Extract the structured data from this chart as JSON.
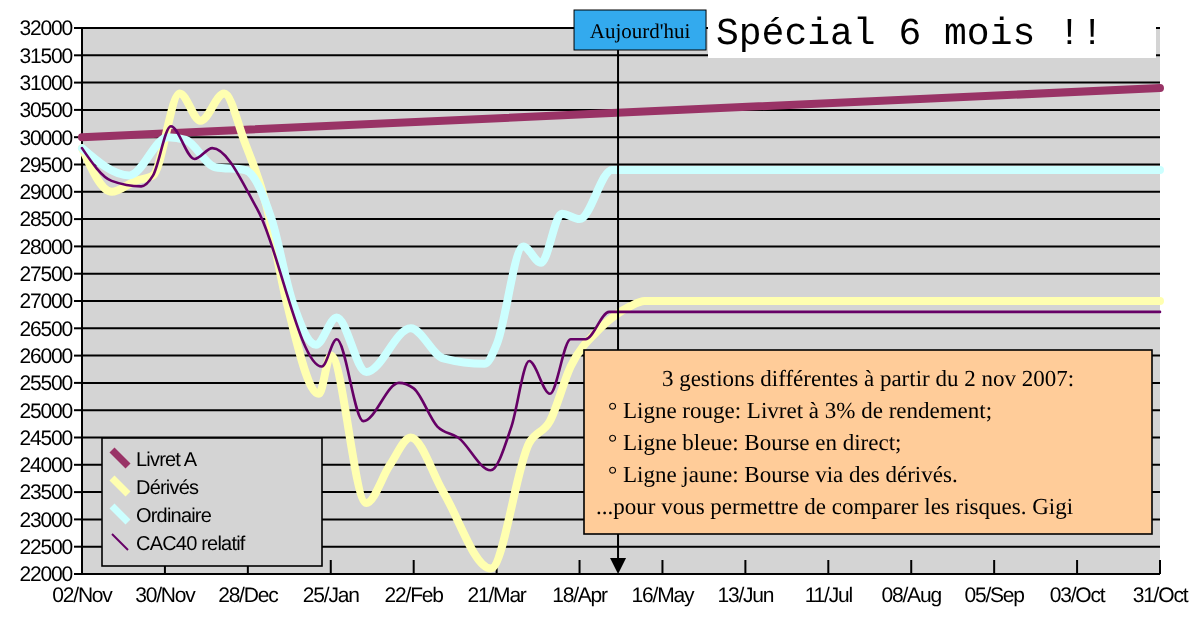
{
  "chart_data": {
    "type": "line",
    "title": "Spécial 6 mois !!",
    "xlim": [
      "2007-11-02",
      "2008-10-31"
    ],
    "xticks": [
      {
        "value": "2007-11-02",
        "label": "02/Nov"
      },
      {
        "value": "2007-11-30",
        "label": "30/Nov"
      },
      {
        "value": "2007-12-28",
        "label": "28/Dec"
      },
      {
        "value": "2008-01-25",
        "label": "25/Jan"
      },
      {
        "value": "2008-02-22",
        "label": "22/Feb"
      },
      {
        "value": "2008-03-21",
        "label": "21/Mar"
      },
      {
        "value": "2008-04-18",
        "label": "18/Apr"
      },
      {
        "value": "2008-05-16",
        "label": "16/May"
      },
      {
        "value": "2008-06-13",
        "label": "13/Jun"
      },
      {
        "value": "2008-07-11",
        "label": "11/Jul"
      },
      {
        "value": "2008-08-08",
        "label": "08/Aug"
      },
      {
        "value": "2008-09-05",
        "label": "05/Sep"
      },
      {
        "value": "2008-10-03",
        "label": "03/Oct"
      },
      {
        "value": "2008-10-31",
        "label": "31/Oct"
      }
    ],
    "ylim": [
      22000,
      32000
    ],
    "yticks": [
      22000,
      22500,
      23000,
      23500,
      24000,
      24500,
      25000,
      25500,
      26000,
      26500,
      27000,
      27500,
      28000,
      28500,
      29000,
      29500,
      30000,
      30500,
      31000,
      31500,
      32000
    ],
    "grid": "y",
    "legend": "bottom left",
    "line_style": "solid",
    "series": [
      {
        "name": "Livret A",
        "color": "#993366",
        "x": [
          "2007-11-02",
          "2008-10-31"
        ],
        "values": [
          30000,
          30900
        ]
      },
      {
        "name": "Dérivés",
        "color": "#ffffb0",
        "x": [
          "2007-11-02",
          "2007-11-12",
          "2007-11-20",
          "2007-11-26",
          "2007-12-05",
          "2007-12-12",
          "2007-12-20",
          "2007-12-27",
          "2008-01-03",
          "2008-01-10",
          "2008-01-21",
          "2008-01-25",
          "2008-02-06",
          "2008-02-14",
          "2008-02-21",
          "2008-03-03",
          "2008-03-19",
          "2008-04-01",
          "2008-04-08",
          "2008-04-15",
          "2008-04-25",
          "2008-05-05",
          "2008-05-10",
          "2008-10-31"
        ],
        "values": [
          29800,
          29000,
          29200,
          29300,
          30800,
          30300,
          30800,
          29900,
          28800,
          27000,
          25300,
          26000,
          23300,
          24000,
          24500,
          23500,
          22100,
          24400,
          24800,
          25800,
          26500,
          26900,
          27000,
          27000
        ]
      },
      {
        "name": "Ordinaire",
        "color": "#ccffff",
        "x": [
          "2007-11-02",
          "2007-11-18",
          "2007-12-01",
          "2007-12-07",
          "2007-12-17",
          "2007-12-27",
          "2008-01-05",
          "2008-01-12",
          "2008-01-20",
          "2008-01-27",
          "2008-02-06",
          "2008-02-21",
          "2008-03-03",
          "2008-03-17",
          "2008-03-21",
          "2008-03-30",
          "2008-04-05",
          "2008-04-12",
          "2008-04-18",
          "2008-04-29",
          "2008-10-31"
        ],
        "values": [
          29800,
          29300,
          30000,
          29950,
          29450,
          29400,
          28500,
          27000,
          26200,
          26700,
          25700,
          26500,
          25950,
          25850,
          26200,
          28000,
          27700,
          28600,
          28500,
          29400,
          29400
        ]
      },
      {
        "name": "CAC40 relatif",
        "color": "#660066",
        "x": [
          "2007-11-02",
          "2007-11-12",
          "2007-11-22",
          "2007-11-26",
          "2007-12-02",
          "2007-12-10",
          "2007-12-16",
          "2007-12-31",
          "2008-01-22",
          "2008-01-27",
          "2008-02-05",
          "2008-02-17",
          "2008-02-22",
          "2008-03-01",
          "2008-03-08",
          "2008-03-19",
          "2008-03-26",
          "2008-04-01",
          "2008-04-08",
          "2008-04-15",
          "2008-04-20",
          "2008-04-28",
          "2008-05-01",
          "2008-10-31"
        ],
        "values": [
          29800,
          29200,
          29100,
          29300,
          30200,
          29600,
          29800,
          28700,
          25800,
          26300,
          24800,
          25500,
          25400,
          24700,
          24500,
          23900,
          24700,
          25900,
          25300,
          26300,
          26300,
          26800,
          26800,
          26800
        ]
      }
    ],
    "ref_lines": [
      {
        "axis": "x",
        "value": "2008-05-01",
        "label": "Aujourd'hui",
        "color": "#000000"
      }
    ],
    "annotations": [
      "3 gestions différentes à partir du 2 nov 2007:",
      "°  Ligne rouge: Livret à 3% de rendement;",
      "°  Ligne bleue: Bourse en direct;",
      "°  Ligne jaune: Bourse via des dérivés.",
      "...pour vous permettre de comparer les risques. Gigi"
    ]
  }
}
